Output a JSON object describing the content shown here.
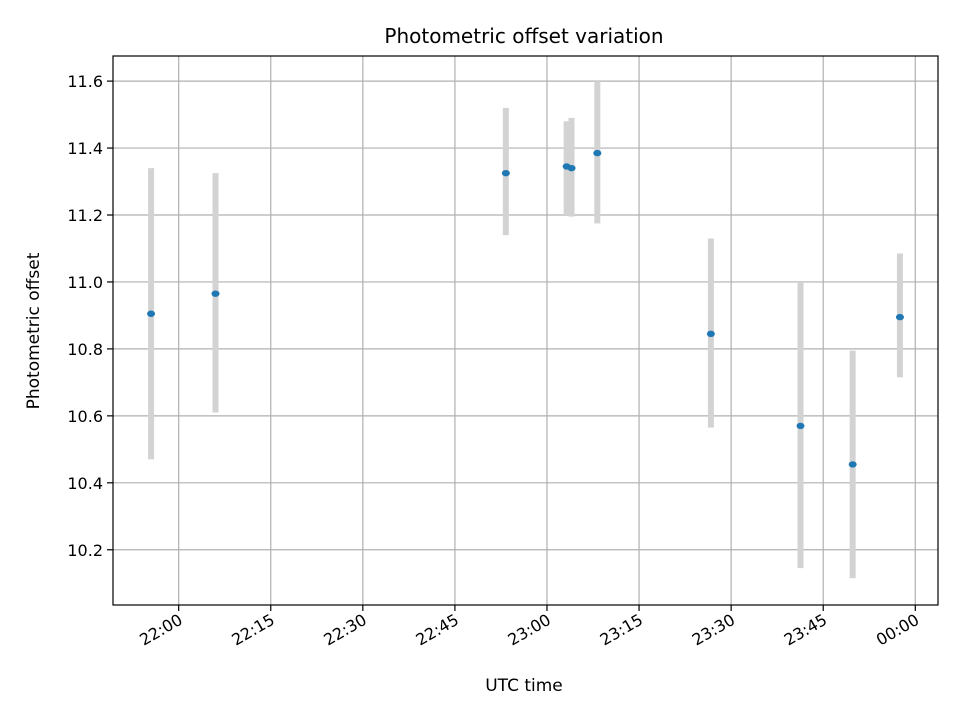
{
  "chart_data": {
    "type": "scatter",
    "title": "Photometric offset variation",
    "xlabel": "UTC time",
    "ylabel": "Photometric offset",
    "x_tick_labels": [
      "22:00",
      "22:15",
      "22:30",
      "22:45",
      "23:00",
      "23:15",
      "23:30",
      "23:45",
      "00:00"
    ],
    "x_tick_minutes": [
      0,
      15,
      30,
      45,
      60,
      75,
      90,
      105,
      120
    ],
    "xlim_minutes": [
      -10.7,
      123.7
    ],
    "y_ticks": [
      10.2,
      10.4,
      10.6,
      10.8,
      11.0,
      11.2,
      11.4,
      11.6
    ],
    "y_tick_labels": [
      "10.2",
      "10.4",
      "10.6",
      "10.8",
      "11.0",
      "11.2",
      "11.4",
      "11.6"
    ],
    "ylim": [
      10.035,
      11.675
    ],
    "grid": true,
    "colors": {
      "points": "#1f77b4",
      "errorbars": "#d3d3d3",
      "grid": "#b0b0b0"
    },
    "points": [
      {
        "time": "21:56",
        "x": -4.5,
        "y": 10.905,
        "yerr_low": 10.47,
        "yerr_high": 11.34
      },
      {
        "time": "22:06",
        "x": 6.0,
        "y": 10.965,
        "yerr_low": 10.61,
        "yerr_high": 11.325
      },
      {
        "time": "22:53",
        "x": 53.3,
        "y": 11.325,
        "yerr_low": 11.14,
        "yerr_high": 11.52
      },
      {
        "time": "23:03",
        "x": 63.2,
        "y": 11.345,
        "yerr_low": 11.2,
        "yerr_high": 11.48
      },
      {
        "time": "23:04",
        "x": 64.0,
        "y": 11.34,
        "yerr_low": 11.195,
        "yerr_high": 11.49
      },
      {
        "time": "23:08",
        "x": 68.2,
        "y": 11.385,
        "yerr_low": 11.175,
        "yerr_high": 11.6
      },
      {
        "time": "23:26",
        "x": 86.7,
        "y": 10.845,
        "yerr_low": 10.565,
        "yerr_high": 11.13
      },
      {
        "time": "23:41",
        "x": 101.3,
        "y": 10.57,
        "yerr_low": 10.145,
        "yerr_high": 11.0
      },
      {
        "time": "23:49",
        "x": 109.8,
        "y": 10.455,
        "yerr_low": 10.115,
        "yerr_high": 10.795
      },
      {
        "time": "23:57",
        "x": 117.5,
        "y": 10.895,
        "yerr_low": 10.715,
        "yerr_high": 11.085
      }
    ]
  }
}
